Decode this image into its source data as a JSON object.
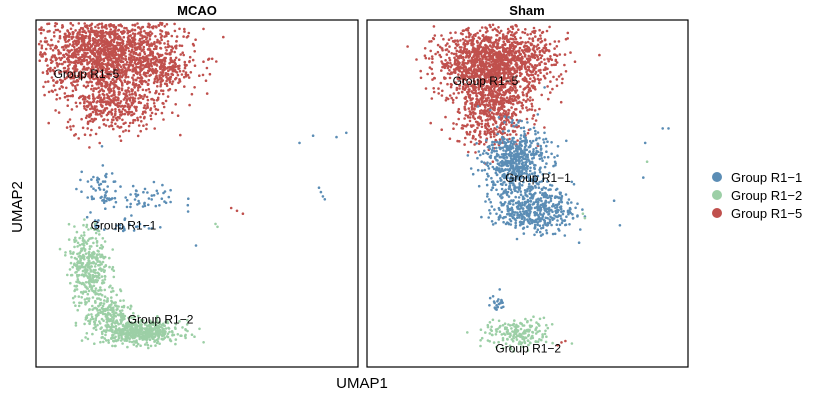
{
  "chart_data": {
    "type": "scatter",
    "xlabel": "UMAP1",
    "ylabel": "UMAP2",
    "grid": false,
    "legend_position": "right",
    "series": [
      {
        "name": "Group R1−1",
        "color": "#5b8db5"
      },
      {
        "name": "Group R1−2",
        "color": "#9ccfa6"
      },
      {
        "name": "Group R1−5",
        "color": "#c0504d"
      }
    ],
    "panels": [
      {
        "title": "MCAO",
        "cluster_labels": [
          {
            "text": "Group R1−5",
            "x": -9.1,
            "y": 10.0
          },
          {
            "text": "Group R1−1",
            "x": -7.2,
            "y": -0.5
          },
          {
            "text": "Group R1−2",
            "x": -5.3,
            "y": -7.0
          }
        ],
        "clusters": [
          {
            "series": 2,
            "cx": -6.4,
            "cy": 11.7,
            "sx": 1.9,
            "sy": 1.4,
            "n": 1700
          },
          {
            "series": 2,
            "cx": -6.0,
            "cy": 8.2,
            "sx": 1.2,
            "sy": 1.0,
            "n": 400
          },
          {
            "series": 2,
            "cx": -3.6,
            "cy": 10.4,
            "sx": 0.7,
            "sy": 0.6,
            "n": 150
          },
          {
            "series": 0,
            "cx": -6.8,
            "cy": 2.4,
            "sx": 0.5,
            "sy": 0.8,
            "n": 50
          },
          {
            "series": 0,
            "cx": -4.6,
            "cy": 1.6,
            "sx": 1.0,
            "sy": 0.5,
            "n": 55
          },
          {
            "series": 0,
            "cx": -5.6,
            "cy": -0.2,
            "sx": 0.9,
            "sy": 0.3,
            "n": 30
          },
          {
            "series": 1,
            "cx": -7.3,
            "cy": -3.0,
            "sx": 0.5,
            "sy": 1.3,
            "n": 350
          },
          {
            "series": 1,
            "cx": -4.6,
            "cy": -7.6,
            "sx": 1.0,
            "sy": 0.4,
            "n": 500
          },
          {
            "series": 1,
            "cx": -6.3,
            "cy": -6.3,
            "sx": 0.6,
            "sy": 0.7,
            "n": 200
          }
        ],
        "points": [
          {
            "series": 0,
            "x": 3.5,
            "y": 5.5
          },
          {
            "series": 0,
            "x": 4.2,
            "y": 6.0
          },
          {
            "series": 0,
            "x": 5.4,
            "y": 5.9
          },
          {
            "series": 0,
            "x": 5.9,
            "y": 6.2
          },
          {
            "series": 0,
            "x": 4.5,
            "y": 2.4
          },
          {
            "series": 0,
            "x": 4.6,
            "y": 2.1
          },
          {
            "series": 0,
            "x": 4.7,
            "y": 1.8
          },
          {
            "series": 0,
            "x": 4.8,
            "y": 1.6
          },
          {
            "series": 1,
            "x": -0.8,
            "y": -0.1
          },
          {
            "series": 1,
            "x": -0.7,
            "y": -0.3
          },
          {
            "series": 2,
            "x": 0.0,
            "y": 1.0
          },
          {
            "series": 2,
            "x": 0.3,
            "y": 0.8
          },
          {
            "series": 2,
            "x": 0.6,
            "y": 0.6
          },
          {
            "series": 0,
            "x": -1.8,
            "y": -1.6
          }
        ]
      },
      {
        "title": "Sham",
        "cluster_labels": [
          {
            "text": "Group R1−5",
            "x": -5.6,
            "y": 9.5
          },
          {
            "text": "Group R1−1",
            "x": -2.9,
            "y": 2.8
          },
          {
            "text": "Group R1−2",
            "x": -3.4,
            "y": -9.0
          }
        ],
        "clusters": [
          {
            "series": 2,
            "cx": -3.4,
            "cy": 11.2,
            "sx": 1.5,
            "sy": 1.1,
            "n": 1300
          },
          {
            "series": 2,
            "cx": -3.6,
            "cy": 8.2,
            "sx": 1.0,
            "sy": 1.4,
            "n": 700
          },
          {
            "series": 0,
            "cx": -2.4,
            "cy": 4.2,
            "sx": 0.8,
            "sy": 1.2,
            "n": 600
          },
          {
            "series": 0,
            "cx": -1.4,
            "cy": 0.9,
            "sx": 1.0,
            "sy": 0.8,
            "n": 450
          },
          {
            "series": 1,
            "cx": -2.2,
            "cy": -7.7,
            "sx": 0.9,
            "sy": 0.5,
            "n": 180
          },
          {
            "series": 0,
            "cx": -3.3,
            "cy": -5.6,
            "sx": 0.2,
            "sy": 0.4,
            "n": 22
          }
        ],
        "points": [
          {
            "series": 0,
            "x": 5.2,
            "y": 6.5
          },
          {
            "series": 0,
            "x": 5.5,
            "y": 6.5
          },
          {
            "series": 0,
            "x": 4.2,
            "y": 3.1
          },
          {
            "series": 0,
            "x": 2.7,
            "y": 1.5
          },
          {
            "series": 0,
            "x": 1.2,
            "y": 0.4
          },
          {
            "series": 0,
            "x": 3.0,
            "y": -0.2
          },
          {
            "series": 0,
            "x": 0.9,
            "y": -1.4
          },
          {
            "series": 0,
            "x": 4.3,
            "y": 5.5
          },
          {
            "series": 1,
            "x": 4.4,
            "y": 4.2
          },
          {
            "series": 1,
            "x": 1.1,
            "y": 0.6
          },
          {
            "series": 1,
            "x": 1.2,
            "y": 0.3
          },
          {
            "series": 2,
            "x": -0.2,
            "y": -8.5
          },
          {
            "series": 2,
            "x": 0.0,
            "y": -8.3
          },
          {
            "series": 2,
            "x": 0.2,
            "y": -8.2
          }
        ]
      }
    ],
    "xlim": [
      -10,
      6.5
    ],
    "ylim": [
      -10,
      14
    ]
  }
}
